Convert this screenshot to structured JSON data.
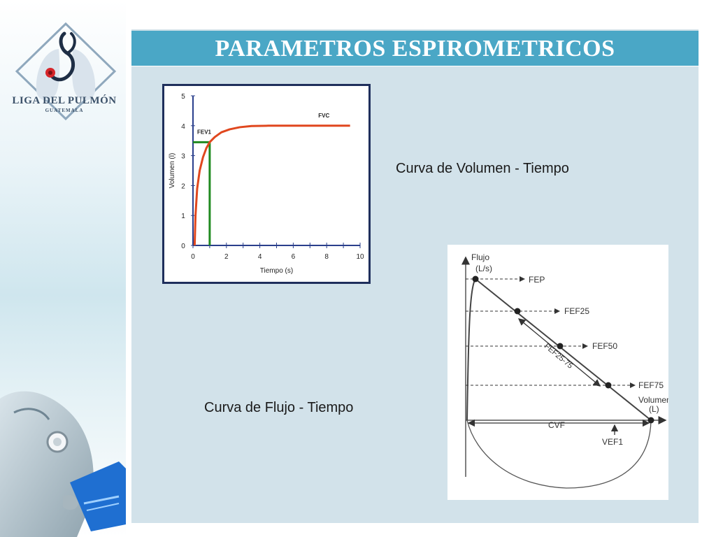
{
  "slide": {
    "title": "PARAMETROS ESPIROMETRICOS",
    "caption_volume_time": "Curva de Volumen - Tiempo",
    "caption_flow_time": "Curva de Flujo - Tiempo"
  },
  "logo": {
    "name": "LIGA DEL PULMÓN",
    "subtitle": "GUATEMALA"
  },
  "colors": {
    "title_bar": "#4aa7c6",
    "content_panel": "#d2e2ea",
    "curve": "#e0471e",
    "fev1_marker": "#1f8a1f",
    "frame": "#1f2f5c"
  },
  "chart_data": [
    {
      "type": "line",
      "xlabel": "Tiempo (s)",
      "ylabel": "Volumen (l)",
      "xlim": [
        0,
        10
      ],
      "ylim": [
        0,
        5
      ],
      "xticks": [
        "0",
        "2",
        "4",
        "6",
        "8",
        "10"
      ],
      "yticks": [
        "0",
        "1",
        "2",
        "3",
        "4",
        "5"
      ],
      "grid": false,
      "series": [
        {
          "name": "FVC",
          "x": [
            0.1,
            0.15,
            0.25,
            0.4,
            0.6,
            0.8,
            1.0,
            1.3,
            1.7,
            2.2,
            2.8,
            3.5,
            4.5,
            6,
            8,
            9.4
          ],
          "y": [
            0,
            1.0,
            1.9,
            2.5,
            2.95,
            3.25,
            3.45,
            3.62,
            3.78,
            3.88,
            3.95,
            3.99,
            4.0,
            4.0,
            4.0,
            4.0
          ]
        }
      ],
      "annotations": [
        {
          "label": "FEV1",
          "x": 1.0,
          "y": 3.45
        },
        {
          "label": "FVC",
          "x": 7.5,
          "y": 4.0
        }
      ]
    },
    {
      "type": "line",
      "ylabel": "Flujo (L/s)",
      "xlabel": "Volumen (L)",
      "grid": false,
      "annotations": [
        "FEP",
        "FEF25",
        "FEF50",
        "FEF75",
        "FEF25-75",
        "CVF",
        "VEF1"
      ]
    }
  ]
}
